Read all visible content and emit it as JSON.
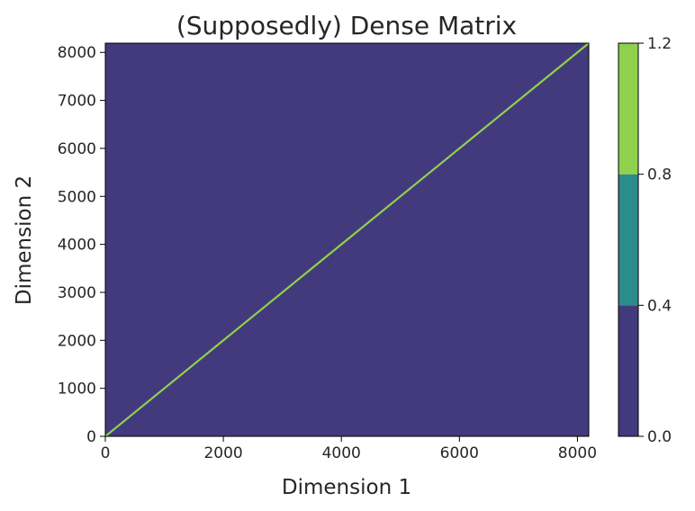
{
  "chart_data": {
    "type": "heatmap",
    "title": "(Supposedly) Dense Matrix",
    "xlabel": "Dimension 1",
    "ylabel": "Dimension 2",
    "xlim": [
      0,
      8192
    ],
    "ylim": [
      0,
      8192
    ],
    "xticks": [
      0,
      2000,
      4000,
      6000,
      8000
    ],
    "yticks": [
      0,
      1000,
      2000,
      3000,
      4000,
      5000,
      6000,
      7000,
      8000
    ],
    "matrix_description": "identity-like: value 1 on the diagonal, 0 elsewhere",
    "diagonal_value": 1.0,
    "off_diagonal_value": 0.0,
    "colorbar": {
      "levels": [
        0.0,
        0.4,
        0.8,
        1.2
      ],
      "tick_labels": [
        "0.0",
        "0.4",
        "0.8",
        "1.2"
      ],
      "colors": [
        "#433a7d",
        "#2b8c8c",
        "#8fd14d"
      ]
    },
    "grid": false
  }
}
